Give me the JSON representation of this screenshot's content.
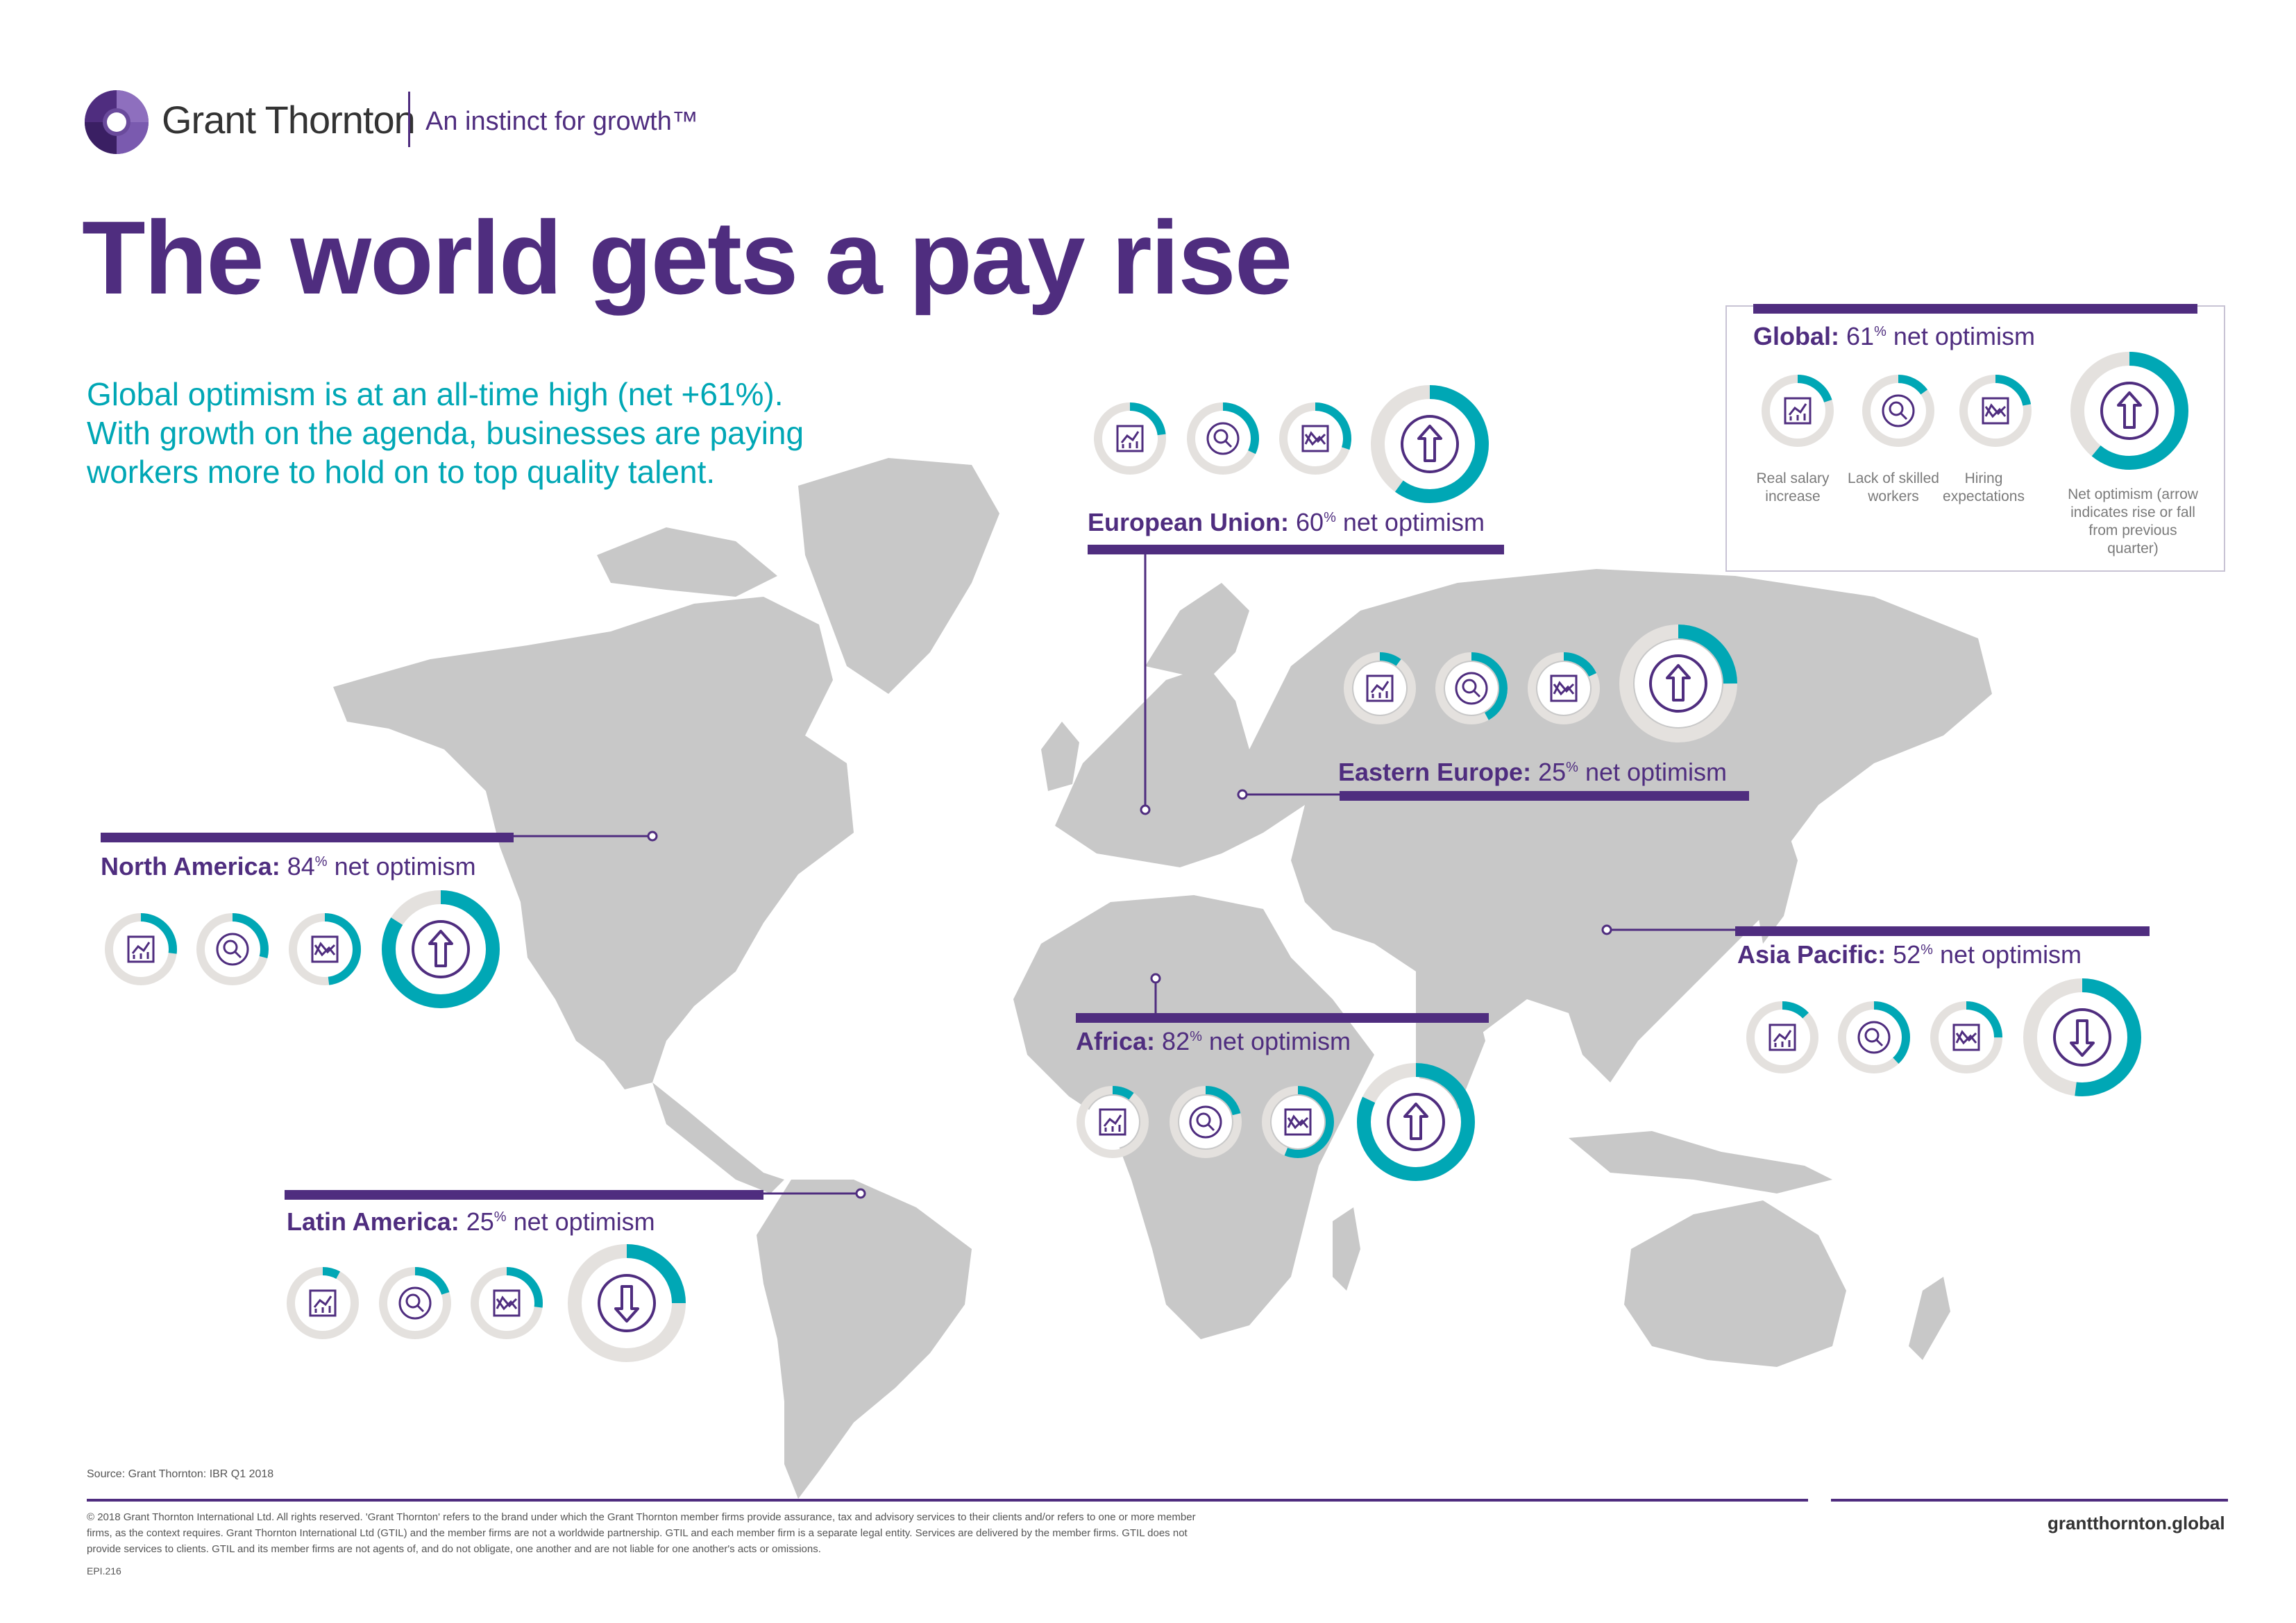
{
  "brand": {
    "name": "Grant Thornton",
    "tagline": "An instinct for growth™"
  },
  "title": "The world gets a pay rise",
  "intro": [
    "Global optimism is at an all-time high (net +61%).",
    "With growth on the agenda, businesses are paying",
    "workers more to hold on to top quality talent."
  ],
  "colors": {
    "purple": "#4f2d7f",
    "teal": "#00a7b5",
    "ring": "#e4e1de",
    "map": "#c8c8c8"
  },
  "regions": {
    "global": {
      "name": "Global:",
      "value": "61",
      "unit": "%",
      "suffix": "net optimism"
    },
    "eu": {
      "name": "European Union:",
      "value": "60",
      "unit": "%",
      "suffix": "net optimism"
    },
    "ee": {
      "name": "Eastern Europe:",
      "value": "25",
      "unit": "%",
      "suffix": "net optimism"
    },
    "na": {
      "name": "North America:",
      "value": "84",
      "unit": "%",
      "suffix": "net optimism"
    },
    "ap": {
      "name": "Asia Pacific:",
      "value": "52",
      "unit": "%",
      "suffix": "net optimism"
    },
    "af": {
      "name": "Africa:",
      "value": "82",
      "unit": "%",
      "suffix": "net optimism"
    },
    "la": {
      "name": "Latin America:",
      "value": "25",
      "unit": "%",
      "suffix": "net optimism"
    }
  },
  "legend": {
    "salary": "Real salary increase",
    "skills": "Lack of skilled workers",
    "hiring": "Hiring expectations",
    "net": "Net optimism (arrow indicates rise or fall from previous quarter)"
  },
  "icons": [
    "salary-chart-icon",
    "magnifier-icon",
    "handshake-icon",
    "arrow-icon"
  ],
  "gauges": {
    "global": {
      "salary": 0.2,
      "skills": 0.15,
      "hiring": 0.22,
      "net": 0.61,
      "arrow": "up"
    },
    "eu": {
      "salary": 0.23,
      "skills": 0.32,
      "hiring": 0.3,
      "net": 0.6,
      "arrow": "up"
    },
    "ee": {
      "salary": 0.1,
      "skills": 0.42,
      "hiring": 0.18,
      "net": 0.25,
      "arrow": "up"
    },
    "na": {
      "salary": 0.27,
      "skills": 0.29,
      "hiring": 0.48,
      "net": 0.84,
      "arrow": "up"
    },
    "ap": {
      "salary": 0.13,
      "skills": 0.38,
      "hiring": 0.25,
      "net": 0.52,
      "arrow": "down"
    },
    "af": {
      "salary": 0.1,
      "skills": 0.21,
      "hiring": 0.56,
      "net": 0.82,
      "arrow": "up"
    },
    "la": {
      "salary": 0.08,
      "skills": 0.2,
      "hiring": 0.27,
      "net": 0.25,
      "arrow": "down"
    }
  },
  "source": "Source: Grant Thornton: IBR Q1 2018",
  "legal": "© 2018 Grant Thornton International Ltd. All rights reserved. 'Grant Thornton' refers to the brand under which the Grant Thornton member firms provide assurance, tax and advisory services to their clients and/or refers to one or more member firms, as the context requires. Grant Thornton International Ltd (GTIL) and the member firms are not a worldwide partnership. GTIL and each member firm is a separate legal entity. Services are delivered by the member firms. GTIL does not provide services to clients. GTIL and its member firms are not agents of, and do not obligate, one another and are not liable for one another's acts or omissions.",
  "code": "EPI.216",
  "website": "grantthornton.global"
}
